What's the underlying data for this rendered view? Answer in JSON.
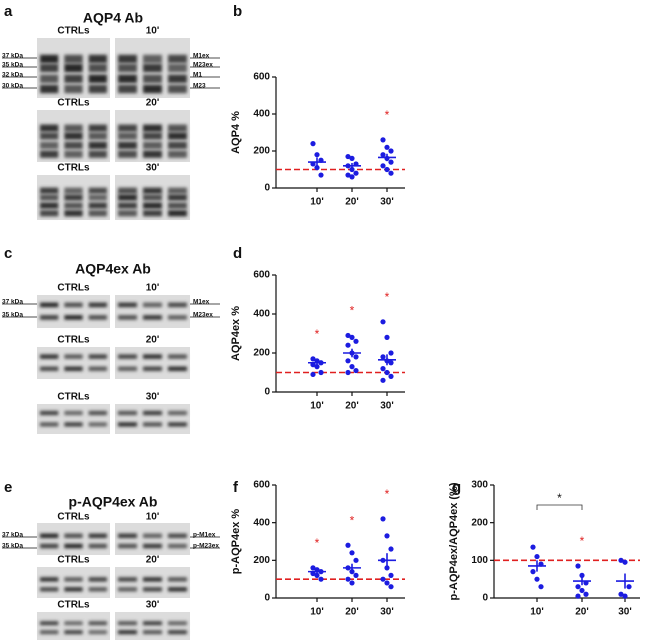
{
  "blots": [
    {
      "letter": "a",
      "title": "AQP4 Ab",
      "kda": [
        "37 kDa",
        "35 kDa",
        "32 kDa",
        "30 kDa"
      ],
      "bands": [
        "M1ex",
        "M23ex",
        "M1",
        "M23"
      ],
      "rows": [
        {
          "left": "CTRLs",
          "right": "10'"
        },
        {
          "left": "CTRLs",
          "right": "20'"
        },
        {
          "left": "CTRLs",
          "right": "30'"
        }
      ]
    },
    {
      "letter": "c",
      "title": "AQP4ex Ab",
      "kda": [
        "37 kDa",
        "35 kDa"
      ],
      "bands": [
        "M1ex",
        "M23ex"
      ],
      "rows": [
        {
          "left": "CTRLs",
          "right": "10'"
        },
        {
          "left": "CTRLs",
          "right": "20'"
        },
        {
          "left": "CTRLs",
          "right": "30'"
        }
      ]
    },
    {
      "letter": "e",
      "title": "p-AQP4ex Ab",
      "kda": [
        "37 kDa",
        "35 kDa"
      ],
      "bands": [
        "p-M1ex",
        "p-M23ex"
      ],
      "rows": [
        {
          "left": "CTRLs",
          "right": "10'"
        },
        {
          "left": "CTRLs",
          "right": "20'"
        },
        {
          "left": "CTRLs",
          "right": "30'"
        }
      ]
    }
  ],
  "chart_data": [
    {
      "type": "strip",
      "panel": "b",
      "y_label": "AQP4 %",
      "categories": [
        "10'",
        "20'",
        "30'"
      ],
      "color": "#1c1ce0",
      "groups": [
        [
          240,
          180,
          150,
          130,
          110,
          70
        ],
        [
          170,
          160,
          130,
          120,
          100,
          80,
          70,
          60
        ],
        [
          260,
          220,
          200,
          180,
          160,
          140,
          120,
          100,
          80
        ]
      ],
      "means": [
        140,
        120,
        165
      ],
      "sems": [
        25,
        15,
        20
      ],
      "markers": [
        null,
        null,
        "*"
      ],
      "marker_color": "#e02020",
      "reference_line": 100,
      "reference_color": "#e02020",
      "ylim": [
        0,
        600
      ],
      "yticks": [
        0,
        200,
        400,
        600
      ]
    },
    {
      "type": "strip",
      "panel": "d",
      "y_label": "AQP4ex %",
      "categories": [
        "10'",
        "20'",
        "30'"
      ],
      "color": "#1c1ce0",
      "groups": [
        [
          170,
          160,
          150,
          140,
          130,
          100,
          90
        ],
        [
          290,
          280,
          260,
          240,
          200,
          180,
          160,
          130,
          110,
          100
        ],
        [
          360,
          280,
          200,
          180,
          160,
          150,
          120,
          100,
          80,
          60
        ]
      ],
      "means": [
        150,
        200,
        165
      ],
      "sems": [
        12,
        22,
        28
      ],
      "markers": [
        "*",
        "*",
        "*"
      ],
      "marker_color": "#e02020",
      "reference_line": 100,
      "reference_color": "#e02020",
      "ylim": [
        0,
        600
      ],
      "yticks": [
        0,
        200,
        400,
        600
      ]
    },
    {
      "type": "strip",
      "panel": "f",
      "y_label": "p-AQP4ex %",
      "categories": [
        "10'",
        "20'",
        "30'"
      ],
      "color": "#1c1ce0",
      "groups": [
        [
          160,
          150,
          140,
          130,
          120,
          100
        ],
        [
          280,
          240,
          200,
          160,
          140,
          120,
          100,
          80
        ],
        [
          420,
          330,
          260,
          200,
          160,
          120,
          100,
          80,
          60
        ]
      ],
      "means": [
        140,
        160,
        200
      ],
      "sems": [
        10,
        22,
        38
      ],
      "markers": [
        "*",
        "*",
        "*"
      ],
      "marker_color": "#e02020",
      "reference_line": 100,
      "reference_color": "#e02020",
      "ylim": [
        0,
        600
      ],
      "yticks": [
        0,
        200,
        400,
        600
      ]
    },
    {
      "type": "strip",
      "panel": "g",
      "y_label": "p-AQP4ex/AQP4ex (%)",
      "categories": [
        "10'",
        "20'",
        "30'"
      ],
      "color": "#1c1ce0",
      "groups": [
        [
          135,
          110,
          90,
          70,
          50,
          30
        ],
        [
          85,
          60,
          40,
          30,
          20,
          10,
          5
        ],
        [
          100,
          95,
          30,
          10,
          5
        ]
      ],
      "means": [
        85,
        45,
        45
      ],
      "sems": [
        15,
        11,
        20
      ],
      "markers": [
        null,
        "*",
        null
      ],
      "marker_color": "#e02020",
      "reference_line": 100,
      "reference_color": "#e02020",
      "ylim": [
        0,
        300
      ],
      "yticks": [
        0,
        100,
        200,
        300
      ],
      "comparison": {
        "between": [
          0,
          1
        ],
        "label": "*"
      }
    }
  ]
}
